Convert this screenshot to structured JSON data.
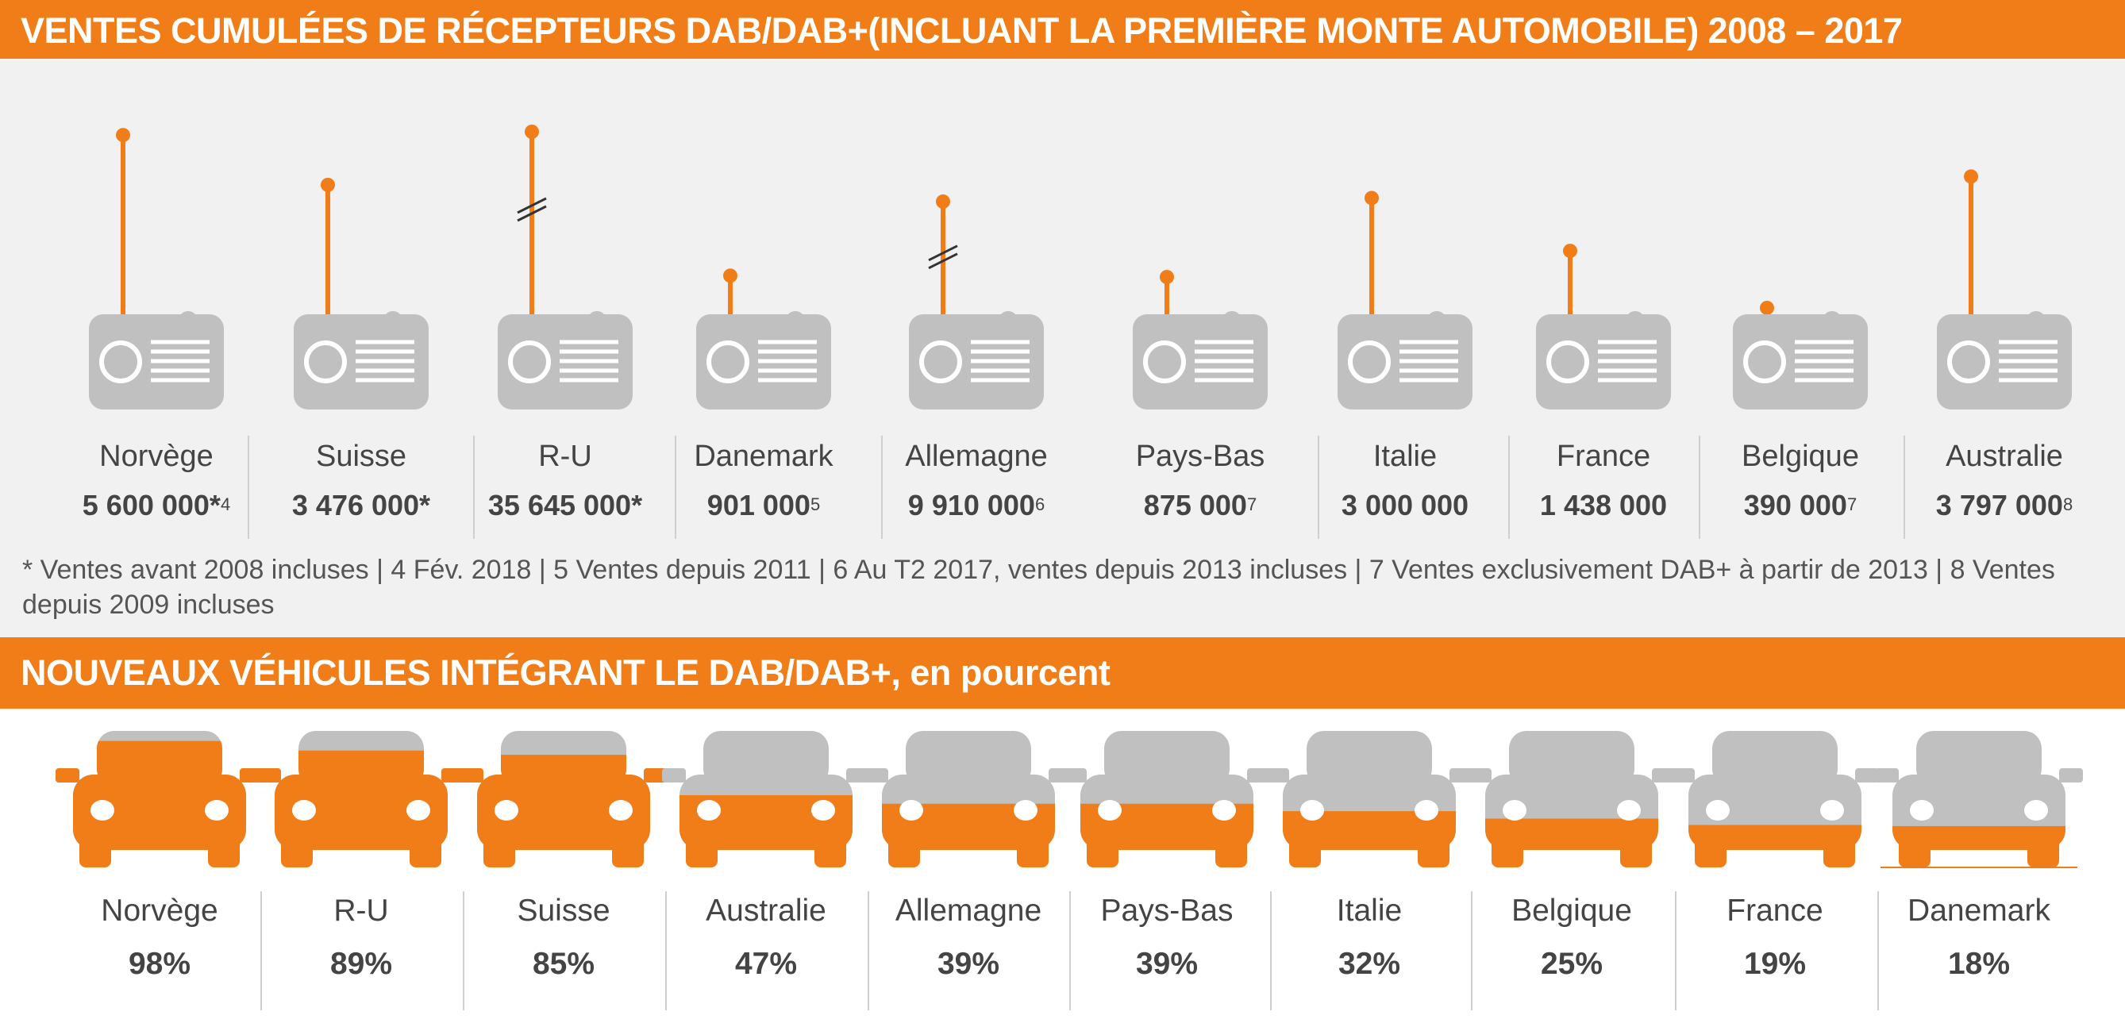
{
  "header1": {
    "title": "VENTES CUMULÉES DE RÉCEPTEURS DAB/DAB+(INCLUANT LA PREMIÈRE MONTE AUTOMOBILE) 2008 – 2017"
  },
  "header2": {
    "title": "NOUVEAUX VÉHICULES INTÉGRANT LE  DAB/DAB+, en pourcent"
  },
  "footnote": "* Ventes avant 2008 incluses  |  4 Fév. 2018  |  5 Ventes depuis 2011  |  6 Au T2 2017, ventes depuis 2013 incluses |  7 Ventes exclusivement  DAB+ à partir de 2013  |  8 Ventes depuis 2009 incluses",
  "colors": {
    "orange": "#f07d18",
    "gray": "#c0c0c0",
    "panel": "#f1f1f1"
  },
  "chart_data": [
    {
      "type": "bar",
      "title": "VENTES CUMULÉES DE RÉCEPTEURS DAB/DAB+(INCLUANT LA PREMIÈRE MONTE AUTOMOBILE) 2008 – 2017",
      "icon": "radio-icon",
      "categories": [
        "Norvège",
        "Suisse",
        "R-U",
        "Danemark",
        "Allemagne",
        "Pays-Bas",
        "Italie",
        "France",
        "Belgique",
        "Australie"
      ],
      "values": [
        5600000,
        3476000,
        35645000,
        901000,
        9910000,
        875000,
        3000000,
        1438000,
        390000,
        3797000
      ],
      "labels": [
        "5 600 000*",
        "3 476 000*",
        "35 645 000*",
        "901 000",
        "9 910 000",
        "875 000",
        "3 000 000",
        "1 438 000",
        "390 000",
        "3 797 000"
      ],
      "footnote_marks": [
        "4",
        "",
        "",
        "5",
        "6",
        "7",
        "",
        "",
        "7",
        "8"
      ],
      "axis_break": [
        false,
        false,
        true,
        false,
        true,
        false,
        false,
        false,
        false,
        false
      ]
    },
    {
      "type": "bar",
      "title": "NOUVEAUX VÉHICULES INTÉGRANT LE  DAB/DAB+, en pourcent",
      "icon": "car-icon",
      "unit": "%",
      "categories": [
        "Norvège",
        "R-U",
        "Suisse",
        "Australie",
        "Allemagne",
        "Pays-Bas",
        "Italie",
        "Belgique",
        "France",
        "Danemark"
      ],
      "values": [
        98,
        89,
        85,
        47,
        39,
        39,
        32,
        25,
        19,
        18
      ],
      "labels": [
        "98%",
        "89%",
        "85%",
        "47%",
        "39%",
        "39%",
        "32%",
        "25%",
        "19%",
        "18%"
      ]
    }
  ]
}
